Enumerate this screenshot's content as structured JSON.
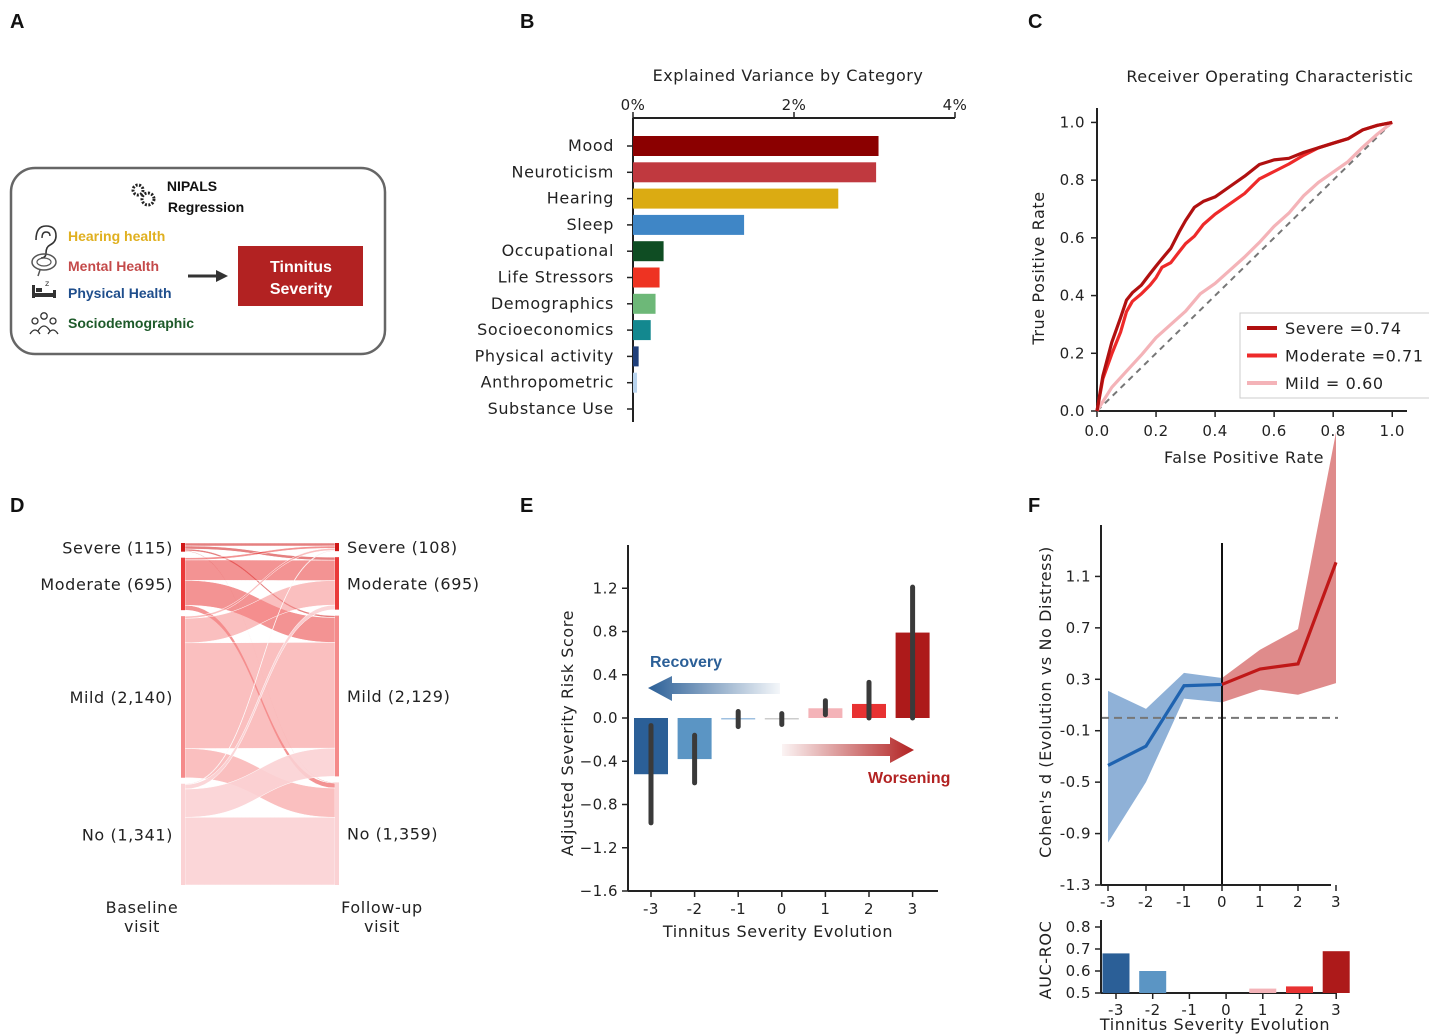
{
  "panel_labels": [
    "A",
    "B",
    "C",
    "D",
    "E",
    "F"
  ],
  "panel_a": {
    "title_line1": "NIPALS",
    "title_line2": "Regression",
    "items": [
      {
        "label": "Hearing health",
        "color": "#e0b020",
        "icon": "ear-icon"
      },
      {
        "label": "Mental Health",
        "color": "#c44a4a",
        "icon": "brain-icon"
      },
      {
        "label": "Physical Health",
        "color": "#1f4e8c",
        "icon": "bed-icon"
      },
      {
        "label": "Sociodemographic",
        "color": "#1e5a2a",
        "icon": "people-icon"
      }
    ],
    "target_line1": "Tinnitus",
    "target_line2": "Severity",
    "target_color": "#b22222"
  },
  "chart_data": [
    {
      "panel": "B",
      "type": "bar",
      "orientation": "horizontal",
      "title": "Explained Variance by Category",
      "xlim": [
        0,
        4
      ],
      "x_ticks": [
        "0%",
        "2%",
        "4%"
      ],
      "categories": [
        "Mood",
        "Neuroticism",
        "Hearing",
        "Sleep",
        "Occupational",
        "Life Stressors",
        "Demographics",
        "Socioeconomics",
        "Physical activity",
        "Anthropometric",
        "Substance Use"
      ],
      "values": [
        3.05,
        3.02,
        2.55,
        1.38,
        0.38,
        0.33,
        0.28,
        0.22,
        0.07,
        0.05,
        0.0
      ],
      "colors": [
        "#8b0000",
        "#c0393f",
        "#dbab12",
        "#3f86c6",
        "#0f4d23",
        "#ee3322",
        "#6db878",
        "#13888f",
        "#1f3f7a",
        "#b9d4ee",
        "#cccccc"
      ]
    },
    {
      "panel": "C",
      "type": "line",
      "title": "Receiver Operating Characteristic",
      "xlabel": "False Positive Rate",
      "ylabel": "True Positive Rate",
      "xlim": [
        0,
        1.05
      ],
      "ylim": [
        0,
        1.05
      ],
      "x_ticks": [
        "0.0",
        "0.2",
        "0.4",
        "0.6",
        "0.8",
        "1.0"
      ],
      "y_ticks": [
        "0.0",
        "0.2",
        "0.4",
        "0.6",
        "0.8",
        "1.0"
      ],
      "legend_position": "lower-right",
      "series": [
        {
          "name": "Severe =0.74",
          "color": "#b01010",
          "x": [
            0,
            0.02,
            0.05,
            0.08,
            0.1,
            0.12,
            0.15,
            0.18,
            0.2,
            0.22,
            0.25,
            0.28,
            0.3,
            0.33,
            0.36,
            0.4,
            0.45,
            0.5,
            0.55,
            0.6,
            0.65,
            0.7,
            0.75,
            0.8,
            0.85,
            0.9,
            0.95,
            1.0
          ],
          "y": [
            0,
            0.12,
            0.24,
            0.33,
            0.38,
            0.41,
            0.44,
            0.47,
            0.5,
            0.53,
            0.57,
            0.62,
            0.66,
            0.71,
            0.72,
            0.74,
            0.78,
            0.82,
            0.85,
            0.87,
            0.88,
            0.89,
            0.91,
            0.93,
            0.95,
            0.97,
            0.99,
            1.0
          ]
        },
        {
          "name": "Moderate =0.71",
          "color": "#ee2a2a",
          "x": [
            0,
            0.02,
            0.05,
            0.08,
            0.1,
            0.12,
            0.15,
            0.18,
            0.2,
            0.22,
            0.25,
            0.28,
            0.3,
            0.33,
            0.36,
            0.4,
            0.45,
            0.5,
            0.55,
            0.6,
            0.65,
            0.7,
            0.75,
            0.8,
            0.85,
            0.9,
            0.95,
            1.0
          ],
          "y": [
            0,
            0.11,
            0.2,
            0.28,
            0.34,
            0.38,
            0.41,
            0.43,
            0.46,
            0.5,
            0.52,
            0.55,
            0.58,
            0.61,
            0.64,
            0.68,
            0.72,
            0.76,
            0.8,
            0.83,
            0.86,
            0.88,
            0.91,
            0.93,
            0.95,
            0.97,
            0.99,
            1.0
          ]
        },
        {
          "name": "Mild = 0.60",
          "color": "#f4b3b8",
          "x": [
            0,
            0.05,
            0.1,
            0.15,
            0.2,
            0.25,
            0.3,
            0.35,
            0.4,
            0.45,
            0.5,
            0.55,
            0.6,
            0.65,
            0.7,
            0.75,
            0.8,
            0.85,
            0.9,
            0.95,
            1.0
          ],
          "y": [
            0,
            0.08,
            0.14,
            0.2,
            0.25,
            0.3,
            0.35,
            0.4,
            0.44,
            0.49,
            0.54,
            0.58,
            0.64,
            0.69,
            0.74,
            0.79,
            0.83,
            0.87,
            0.91,
            0.96,
            1.0
          ]
        }
      ],
      "diagonal": true
    },
    {
      "panel": "D",
      "type": "sankey",
      "left_label_line1": "Baseline",
      "left_label_line2": "visit",
      "right_label_line1": "Follow-up",
      "right_label_line2": "visit",
      "left_nodes": [
        {
          "label": "Severe (115)",
          "value": 115
        },
        {
          "label": "Moderate (695)",
          "value": 695
        },
        {
          "label": "Mild (2,140)",
          "value": 2140
        },
        {
          "label": "No (1,341)",
          "value": 1341
        }
      ],
      "right_nodes": [
        {
          "label": "Severe (108)",
          "value": 108
        },
        {
          "label": "Moderate (695)",
          "value": 695
        },
        {
          "label": "Mild (2,129)",
          "value": 2129
        },
        {
          "label": "No (1,359)",
          "value": 1359
        }
      ],
      "flows": [
        [
          0,
          0,
          40
        ],
        [
          0,
          1,
          40
        ],
        [
          0,
          2,
          25
        ],
        [
          0,
          3,
          10
        ],
        [
          1,
          0,
          30
        ],
        [
          1,
          1,
          270
        ],
        [
          1,
          2,
          330
        ],
        [
          1,
          3,
          65
        ],
        [
          2,
          0,
          28
        ],
        [
          2,
          1,
          325
        ],
        [
          2,
          2,
          1400
        ],
        [
          2,
          3,
          387
        ],
        [
          3,
          0,
          10
        ],
        [
          3,
          1,
          60
        ],
        [
          3,
          2,
          374
        ],
        [
          3,
          3,
          897
        ]
      ],
      "node_colors": [
        "#d01818",
        "#ea3a3a",
        "#f58a8a",
        "#fbd2d4"
      ]
    },
    {
      "panel": "E",
      "type": "bar",
      "xlabel": "Tinnitus  Severity Evolution",
      "ylabel": "Adjusted Severity Risk Score",
      "ylim": [
        -1.6,
        1.6
      ],
      "y_ticks": [
        "1.2",
        "0.8",
        "0.4",
        "0.0",
        "−0.4",
        "−0.8",
        "−1.2",
        "−1.6"
      ],
      "categories": [
        "-3",
        "-2",
        "-1",
        "0",
        "1",
        "2",
        "3"
      ],
      "values": [
        -0.52,
        -0.38,
        -0.01,
        0.0,
        0.09,
        0.13,
        0.79
      ],
      "err_low": [
        -0.97,
        -0.6,
        -0.08,
        -0.06,
        0.03,
        0.0,
        0.0
      ],
      "err_high": [
        -0.07,
        -0.16,
        0.06,
        0.04,
        0.16,
        0.33,
        1.21
      ],
      "colors": [
        "#2b5f97",
        "#5b95c4",
        "#9fc0e0",
        "#cccccc",
        "#f4b3b8",
        "#e83232",
        "#ad1a1a"
      ],
      "annotations": [
        {
          "text": "Recovery",
          "color": "#2b5f97"
        },
        {
          "text": "Worsening",
          "color": "#b22222"
        }
      ]
    },
    {
      "panel": "F",
      "type": "line",
      "ylabel": "Cohen's d (Evolution vs No Distress)",
      "ylim": [
        -1.3,
        1.5
      ],
      "y_ticks": [
        "1.1",
        "0.7",
        "0.3",
        "-0.1",
        "-0.5",
        "-0.9",
        "-1.3"
      ],
      "x_ticks": [
        "-3",
        "-2",
        "-1",
        "0",
        "1",
        "2",
        "3"
      ],
      "reference_line_y": 0.0,
      "series": [
        {
          "name": "",
          "color": "#1f63b0",
          "x": [
            -3,
            -2,
            -1,
            0
          ],
          "y": [
            -0.37,
            -0.22,
            0.25,
            0.26
          ],
          "ci_low": [
            -0.97,
            -0.5,
            0.15,
            0.12
          ],
          "ci_high": [
            0.21,
            0.07,
            0.35,
            0.31
          ]
        },
        {
          "name": "",
          "color": "#c01818",
          "x": [
            0,
            1,
            2,
            3
          ],
          "y": [
            0.26,
            0.38,
            0.42,
            1.21
          ],
          "ci_low": [
            0.12,
            0.22,
            0.18,
            0.27
          ],
          "ci_high": [
            0.31,
            0.53,
            0.69,
            2.22
          ]
        }
      ]
    },
    {
      "panel": "F-bottom",
      "type": "bar",
      "ylabel": "AUC-ROC",
      "xlabel": "Tinnitus  Severity Evolution",
      "ylim": [
        0.5,
        0.8
      ],
      "y_ticks": [
        "0.8",
        "0.7",
        "0.6",
        "0.5"
      ],
      "categories": [
        "-3",
        "-2",
        "-1",
        "0",
        "1",
        "2",
        "3"
      ],
      "values": [
        0.68,
        0.6,
        0.5,
        0.5,
        0.52,
        0.53,
        0.69
      ],
      "colors": [
        "#2b5f97",
        "#5b95c4",
        "#9fc0e0",
        "#cccccc",
        "#f4b3b8",
        "#e83232",
        "#ad1a1a"
      ]
    }
  ]
}
